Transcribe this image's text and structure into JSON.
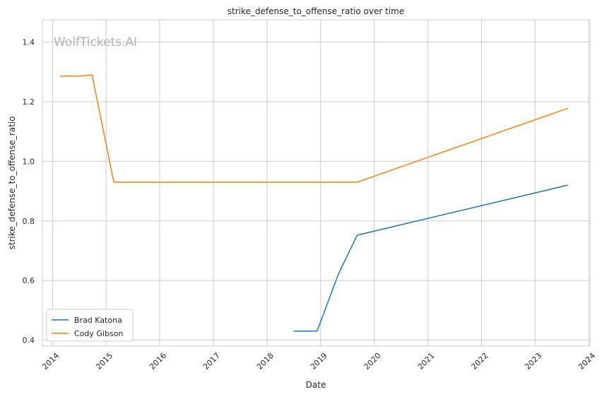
{
  "chart_data": {
    "type": "line",
    "title": "strike_defense_to_offense_ratio over time",
    "xlabel": "Date",
    "ylabel": "strike_defense_to_offense_ratio",
    "watermark": "WolfTickets.AI",
    "x_axis_type": "date",
    "xlim": [
      "2013-10-24",
      "2024-01-10"
    ],
    "ylim": [
      0.38,
      1.475
    ],
    "x_ticks": [
      "2014",
      "2015",
      "2016",
      "2017",
      "2018",
      "2019",
      "2020",
      "2021",
      "2022",
      "2023",
      "2024"
    ],
    "y_ticks": [
      "0.4",
      "0.6",
      "0.8",
      "1.0",
      "1.2",
      "1.4"
    ],
    "grid": true,
    "legend_position": "bottom-left",
    "series": [
      {
        "name": "Brad Katona",
        "color": "#1f77b4",
        "points": [
          {
            "x": "2018-06-30",
            "y": 0.43
          },
          {
            "x": "2018-12-08",
            "y": 0.43
          },
          {
            "x": "2019-05-01",
            "y": 0.62
          },
          {
            "x": "2019-09-07",
            "y": 0.752
          },
          {
            "x": "2023-08-12",
            "y": 0.92
          }
        ]
      },
      {
        "name": "Cody Gibson",
        "color": "#ff7f0e",
        "points": [
          {
            "x": "2014-02-22",
            "y": 1.286
          },
          {
            "x": "2014-07-05",
            "y": 1.286
          },
          {
            "x": "2014-09-27",
            "y": 1.29
          },
          {
            "x": "2015-02-22",
            "y": 0.93
          },
          {
            "x": "2019-09-07",
            "y": 0.93
          },
          {
            "x": "2023-08-12",
            "y": 1.178
          }
        ]
      }
    ]
  }
}
